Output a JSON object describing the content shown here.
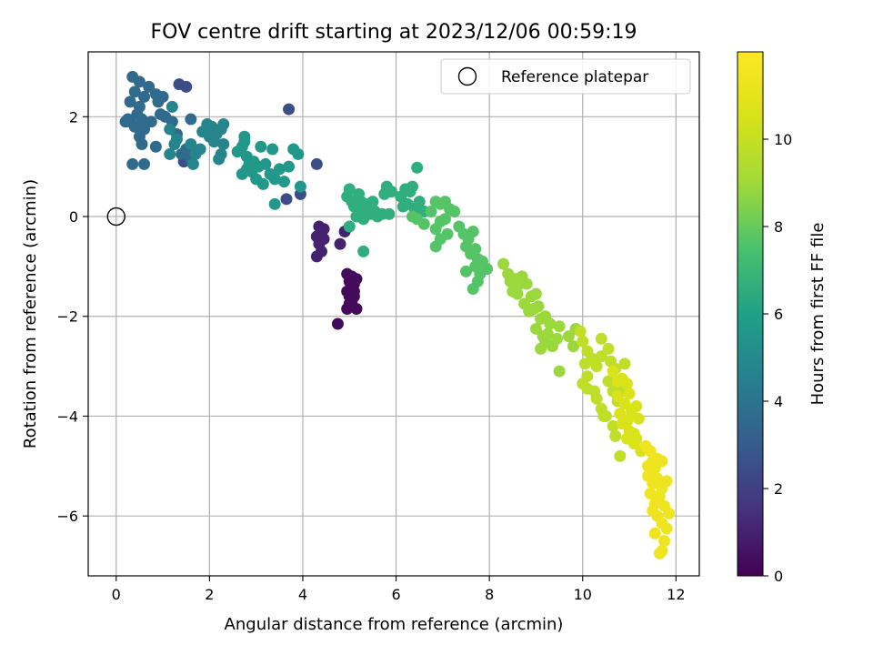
{
  "chart_data": {
    "type": "scatter",
    "title": "FOV centre drift starting at 2023/12/06 00:59:19",
    "xlabel": "Angular distance from reference (arcmin)",
    "ylabel": "Rotation from reference (arcmin)",
    "xlim": [
      -0.6,
      12.5
    ],
    "ylim": [
      -7.2,
      3.3
    ],
    "x_ticks": [
      0,
      2,
      4,
      6,
      8,
      10,
      12
    ],
    "y_ticks": [
      -6,
      -4,
      -2,
      0,
      2
    ],
    "x_tick_labels": [
      "0",
      "2",
      "4",
      "6",
      "8",
      "10",
      "12"
    ],
    "y_tick_labels": [
      "−6",
      "−4",
      "−2",
      "0",
      "2"
    ],
    "grid": true,
    "legend_position": "top-right",
    "colormap": "viridis",
    "colorbar": {
      "label": "Hours from first FF file",
      "range": [
        0,
        12
      ],
      "ticks": [
        0,
        2,
        4,
        6,
        8,
        10
      ],
      "tick_labels": [
        "0",
        "2",
        "4",
        "6",
        "8",
        "10"
      ]
    },
    "reference": {
      "label": "Reference platepar",
      "x": 0,
      "y": 0
    },
    "series": [
      {
        "segment": "0.0-0.5h",
        "points": [
          [
            4.75,
            -2.15
          ],
          [
            4.95,
            -1.85
          ],
          [
            5.0,
            -1.75
          ],
          [
            5.05,
            -1.7
          ],
          [
            5.1,
            -1.6
          ],
          [
            4.95,
            -1.5
          ],
          [
            5.05,
            -1.45
          ],
          [
            5.1,
            -1.35
          ],
          [
            5.0,
            -1.3
          ],
          [
            5.15,
            -1.25
          ],
          [
            5.05,
            -1.2
          ],
          [
            4.95,
            -1.15
          ],
          [
            5.1,
            -1.5
          ],
          [
            5.15,
            -1.85
          ],
          [
            5.0,
            -1.6
          ]
        ],
        "t": 0.3
      },
      {
        "segment": "0.5-1.5h",
        "points": [
          [
            4.3,
            -0.8
          ],
          [
            4.4,
            -0.7
          ],
          [
            4.35,
            -0.55
          ],
          [
            4.45,
            -0.45
          ],
          [
            4.3,
            -0.4
          ],
          [
            4.4,
            -0.35
          ],
          [
            4.45,
            -0.25
          ],
          [
            4.35,
            -0.2
          ],
          [
            4.9,
            -0.3
          ],
          [
            4.8,
            -0.55
          ]
        ],
        "t": 1.0
      },
      {
        "segment": "2-3h",
        "points": [
          [
            3.7,
            2.15
          ],
          [
            3.95,
            0.45
          ],
          [
            3.65,
            0.35
          ],
          [
            4.3,
            1.05
          ],
          [
            1.45,
            1.1
          ],
          [
            1.5,
            2.6
          ],
          [
            1.35,
            2.65
          ]
        ],
        "t": 2.5
      },
      {
        "segment": "3-4h",
        "points": [
          [
            0.35,
            2.8
          ],
          [
            0.5,
            2.7
          ],
          [
            0.4,
            2.5
          ],
          [
            0.6,
            2.4
          ],
          [
            0.3,
            2.3
          ],
          [
            0.5,
            2.2
          ],
          [
            0.7,
            2.6
          ],
          [
            0.85,
            2.45
          ],
          [
            0.9,
            2.3
          ],
          [
            1.0,
            2.4
          ],
          [
            0.45,
            2.05
          ],
          [
            0.55,
            1.95
          ],
          [
            0.3,
            1.9
          ],
          [
            0.2,
            1.9
          ],
          [
            0.4,
            1.8
          ],
          [
            0.6,
            1.75
          ],
          [
            0.75,
            1.9
          ],
          [
            0.5,
            1.6
          ],
          [
            0.55,
            1.45
          ],
          [
            0.35,
            1.05
          ],
          [
            0.6,
            1.05
          ],
          [
            0.85,
            1.4
          ],
          [
            1.2,
            1.9
          ],
          [
            1.05,
            2.0
          ],
          [
            1.3,
            1.65
          ],
          [
            1.6,
            1.95
          ],
          [
            1.5,
            1.35
          ],
          [
            1.4,
            1.25
          ],
          [
            1.6,
            1.15
          ],
          [
            0.25,
            1.95
          ],
          [
            0.95,
            2.05
          ]
        ],
        "t": 3.6
      },
      {
        "segment": "4-5h",
        "points": [
          [
            1.2,
            2.2
          ],
          [
            1.15,
            1.75
          ],
          [
            1.3,
            1.55
          ],
          [
            1.25,
            1.45
          ],
          [
            1.6,
            1.45
          ],
          [
            1.7,
            1.25
          ],
          [
            1.8,
            1.35
          ],
          [
            1.85,
            1.7
          ],
          [
            2.0,
            1.6
          ],
          [
            2.1,
            1.5
          ],
          [
            2.05,
            1.8
          ],
          [
            1.95,
            1.85
          ],
          [
            2.15,
            1.65
          ],
          [
            2.25,
            1.75
          ],
          [
            2.3,
            1.45
          ],
          [
            2.25,
            1.25
          ],
          [
            2.2,
            1.15
          ],
          [
            2.3,
            1.85
          ],
          [
            1.15,
            1.25
          ],
          [
            1.65,
            1.05
          ]
        ],
        "t": 4.7
      },
      {
        "segment": "5-6h",
        "points": [
          [
            2.6,
            1.3
          ],
          [
            2.7,
            1.4
          ],
          [
            2.75,
            1.5
          ],
          [
            2.8,
            1.2
          ],
          [
            2.85,
            1.05
          ],
          [
            2.95,
            1.1
          ],
          [
            2.8,
            0.95
          ],
          [
            2.7,
            0.85
          ],
          [
            3.05,
            1.0
          ],
          [
            3.2,
            1.05
          ],
          [
            3.3,
            0.85
          ],
          [
            3.4,
            0.75
          ],
          [
            3.5,
            0.95
          ],
          [
            3.1,
            1.4
          ],
          [
            3.35,
            1.35
          ],
          [
            3.6,
            0.7
          ],
          [
            3.7,
            1.0
          ],
          [
            3.8,
            1.35
          ],
          [
            3.9,
            1.25
          ],
          [
            3.95,
            0.6
          ],
          [
            3.4,
            0.25
          ],
          [
            2.9,
            0.9
          ],
          [
            3.15,
            0.65
          ],
          [
            2.75,
            1.6
          ],
          [
            3.0,
            0.75
          ]
        ],
        "t": 5.6
      },
      {
        "segment": "6-7h",
        "points": [
          [
            4.95,
            0.4
          ],
          [
            5.0,
            0.55
          ],
          [
            5.05,
            0.3
          ],
          [
            5.1,
            0.2
          ],
          [
            5.2,
            0.45
          ],
          [
            5.25,
            0.3
          ],
          [
            5.3,
            0.15
          ],
          [
            5.35,
            0.05
          ],
          [
            5.4,
            0.25
          ],
          [
            5.5,
            0.3
          ],
          [
            5.55,
            0.1
          ],
          [
            5.6,
            0.0
          ],
          [
            5.15,
            -0.0
          ],
          [
            5.3,
            -0.05
          ],
          [
            5.45,
            0.05
          ],
          [
            5.0,
            -0.2
          ],
          [
            5.7,
            0.05
          ],
          [
            5.85,
            0.05
          ],
          [
            5.75,
            0.45
          ],
          [
            5.8,
            0.6
          ],
          [
            5.9,
            0.5
          ],
          [
            5.3,
            -0.7
          ],
          [
            6.1,
            0.4
          ],
          [
            6.2,
            0.55
          ],
          [
            6.3,
            0.5
          ],
          [
            6.35,
            0.6
          ],
          [
            6.25,
            0.25
          ],
          [
            6.15,
            0.2
          ],
          [
            6.4,
            0.15
          ],
          [
            6.45,
            0.98
          ],
          [
            6.5,
            0.3
          ],
          [
            6.6,
            0.1
          ]
        ],
        "t": 6.6
      },
      {
        "segment": "7-8h",
        "points": [
          [
            6.35,
            0.0
          ],
          [
            6.45,
            -0.05
          ],
          [
            6.6,
            -0.15
          ],
          [
            6.75,
            0.1
          ],
          [
            6.85,
            0.3
          ],
          [
            6.95,
            0.25
          ],
          [
            7.05,
            0.3
          ],
          [
            7.15,
            0.15
          ],
          [
            7.25,
            0.1
          ],
          [
            7.05,
            -0.05
          ],
          [
            6.95,
            -0.1
          ],
          [
            6.85,
            -0.25
          ],
          [
            7.1,
            -0.35
          ],
          [
            6.95,
            -0.45
          ],
          [
            6.85,
            -0.6
          ],
          [
            7.35,
            -0.2
          ],
          [
            7.45,
            -0.35
          ],
          [
            7.55,
            -0.45
          ],
          [
            7.5,
            -0.6
          ],
          [
            7.65,
            -0.3
          ],
          [
            7.6,
            -0.75
          ],
          [
            7.7,
            -0.65
          ],
          [
            7.75,
            -0.85
          ],
          [
            7.7,
            -1.0
          ],
          [
            7.85,
            -0.9
          ],
          [
            7.8,
            -1.15
          ],
          [
            7.75,
            -1.3
          ],
          [
            7.65,
            -1.45
          ],
          [
            7.5,
            -1.1
          ],
          [
            7.95,
            -1.05
          ]
        ],
        "t": 7.7
      },
      {
        "segment": "8-9h",
        "points": [
          [
            8.3,
            -0.95
          ],
          [
            8.4,
            -1.15
          ],
          [
            8.45,
            -1.3
          ],
          [
            8.55,
            -1.25
          ],
          [
            8.5,
            -1.5
          ],
          [
            8.6,
            -1.4
          ],
          [
            8.7,
            -1.2
          ],
          [
            8.8,
            -1.35
          ],
          [
            8.9,
            -1.6
          ],
          [
            8.75,
            -1.75
          ],
          [
            8.85,
            -1.9
          ],
          [
            9.0,
            -1.55
          ],
          [
            9.05,
            -1.8
          ],
          [
            9.1,
            -2.05
          ],
          [
            9.0,
            -2.25
          ],
          [
            9.15,
            -2.4
          ],
          [
            9.25,
            -2.35
          ],
          [
            9.3,
            -2.15
          ],
          [
            9.2,
            -2.5
          ],
          [
            9.35,
            -2.6
          ],
          [
            9.45,
            -2.45
          ],
          [
            9.5,
            -2.2
          ],
          [
            9.1,
            -2.65
          ],
          [
            9.5,
            -3.1
          ],
          [
            9.7,
            -2.4
          ],
          [
            9.8,
            -2.6
          ],
          [
            9.85,
            -2.25
          ],
          [
            8.6,
            -1.55
          ],
          [
            8.95,
            -1.85
          ],
          [
            9.2,
            -2.0
          ]
        ],
        "t": 8.9
      },
      {
        "segment": "9-10h",
        "points": [
          [
            9.95,
            -2.3
          ],
          [
            10.0,
            -2.5
          ],
          [
            10.1,
            -2.7
          ],
          [
            10.05,
            -2.95
          ],
          [
            10.2,
            -2.85
          ],
          [
            10.3,
            -3.0
          ],
          [
            10.4,
            -2.8
          ],
          [
            10.4,
            -2.45
          ],
          [
            10.55,
            -2.65
          ],
          [
            10.6,
            -2.9
          ],
          [
            10.7,
            -3.05
          ],
          [
            10.1,
            -3.2
          ],
          [
            10.0,
            -3.35
          ],
          [
            10.1,
            -3.45
          ],
          [
            10.25,
            -3.5
          ],
          [
            10.3,
            -3.65
          ],
          [
            10.4,
            -3.85
          ],
          [
            10.45,
            -4.0
          ],
          [
            10.55,
            -3.3
          ],
          [
            10.65,
            -3.5
          ],
          [
            10.75,
            -3.7
          ],
          [
            10.85,
            -3.5
          ],
          [
            10.9,
            -2.95
          ],
          [
            10.5,
            -4.0
          ],
          [
            10.7,
            -4.4
          ],
          [
            10.65,
            -4.2
          ],
          [
            10.8,
            -4.8
          ]
        ],
        "t": 9.8
      },
      {
        "segment": "10-11h",
        "points": [
          [
            10.65,
            -3.1
          ],
          [
            10.75,
            -3.3
          ],
          [
            10.85,
            -3.25
          ],
          [
            10.95,
            -3.35
          ],
          [
            11.0,
            -3.55
          ],
          [
            10.9,
            -3.75
          ],
          [
            10.8,
            -3.95
          ],
          [
            10.95,
            -4.1
          ],
          [
            11.0,
            -4.3
          ],
          [
            11.1,
            -4.35
          ],
          [
            11.05,
            -3.9
          ],
          [
            11.15,
            -3.8
          ],
          [
            11.2,
            -4.05
          ],
          [
            11.1,
            -4.55
          ],
          [
            11.25,
            -4.7
          ],
          [
            11.15,
            -4.45
          ],
          [
            10.85,
            -4.15
          ],
          [
            10.75,
            -3.6
          ],
          [
            11.05,
            -4.0
          ],
          [
            10.95,
            -4.45
          ]
        ],
        "t": 10.6
      },
      {
        "segment": "11-12h",
        "points": [
          [
            11.35,
            -4.6
          ],
          [
            11.45,
            -4.7
          ],
          [
            11.5,
            -4.9
          ],
          [
            11.55,
            -5.05
          ],
          [
            11.6,
            -4.85
          ],
          [
            11.7,
            -4.9
          ],
          [
            11.4,
            -5.2
          ],
          [
            11.5,
            -5.35
          ],
          [
            11.45,
            -5.55
          ],
          [
            11.55,
            -5.75
          ],
          [
            11.65,
            -5.6
          ],
          [
            11.7,
            -5.45
          ],
          [
            11.8,
            -5.3
          ],
          [
            11.75,
            -5.8
          ],
          [
            11.85,
            -5.95
          ],
          [
            11.6,
            -6.0
          ],
          [
            11.7,
            -6.15
          ],
          [
            11.8,
            -6.25
          ],
          [
            11.55,
            -6.35
          ],
          [
            11.75,
            -6.5
          ],
          [
            11.7,
            -6.7
          ],
          [
            11.65,
            -6.75
          ],
          [
            11.5,
            -5.9
          ],
          [
            11.4,
            -5.0
          ],
          [
            11.6,
            -5.25
          ]
        ],
        "t": 11.4
      }
    ]
  }
}
